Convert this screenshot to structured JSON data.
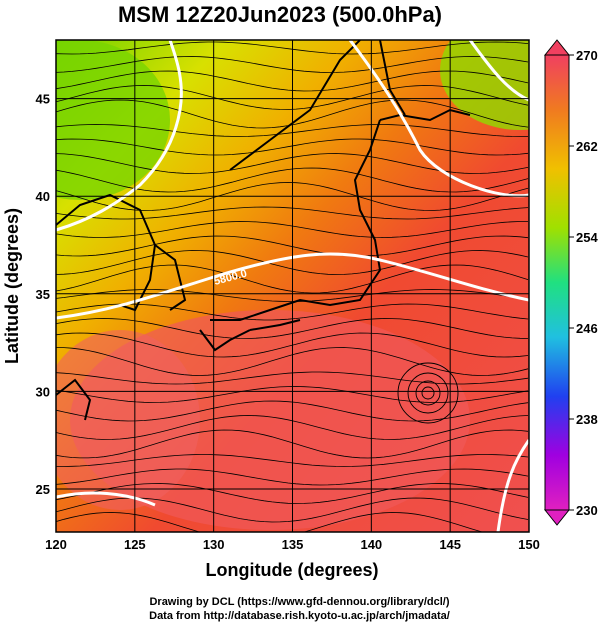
{
  "title": "MSM 12Z20Jun2023 (500.0hPa)",
  "map": {
    "xlabel": "Longitude (degrees)",
    "ylabel": "Latitude  (degrees)",
    "lon_ticks": [
      "120",
      "125",
      "130",
      "135",
      "140",
      "145",
      "150"
    ],
    "lat_ticks": [
      "25",
      "30",
      "35",
      "40",
      "45"
    ],
    "contour_label": "5800.0",
    "colors": {
      "green": "#8ee000",
      "yellow": "#e0e000",
      "orange": "#f08000",
      "red": "#f04040"
    }
  },
  "colorbar": {
    "ticks": [
      "270",
      "262",
      "254",
      "246",
      "238",
      "230"
    ],
    "colors": [
      "#f04060",
      "#f07a20",
      "#f0c000",
      "#a0e000",
      "#20e080",
      "#20c0e0",
      "#2040f0",
      "#a000e0",
      "#e020c0"
    ]
  },
  "credits": {
    "line1": "Drawing by DCL (https://www.gfd-dennou.org/library/dcl/)",
    "line2": "Data from http://database.rish.kyoto-u.ac.jp/arch/jmadata/"
  }
}
